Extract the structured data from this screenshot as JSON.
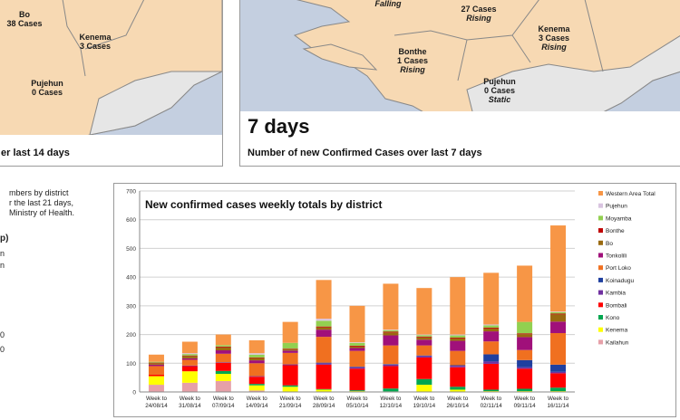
{
  "map14": {
    "districts": [
      {
        "name": "Bo",
        "cases": "38 Cases"
      },
      {
        "name": "Kenema",
        "cases": "3 Cases"
      },
      {
        "name": "Pujehun",
        "cases": "0 Cases"
      }
    ],
    "caption": "er last 14 days"
  },
  "map7": {
    "top_trend": "Falling",
    "top_cases": "27 Cases",
    "top_cases_trend": "Rising",
    "districts": [
      {
        "name": "Kenema",
        "cases": "3 Cases",
        "trend": "Rising"
      },
      {
        "name": "Bonthe",
        "cases": "1 Cases",
        "trend": "Rising"
      },
      {
        "name": "Pujehun",
        "cases": "0 Cases",
        "trend": "Static"
      }
    ],
    "big_label": "7 days",
    "caption": "Number of new Confirmed Cases over last 7 days"
  },
  "left_note": {
    "lines": [
      "mbers by district",
      "r the last 21 days,",
      "Ministry of Health."
    ],
    "fragments": [
      "p)",
      "n",
      "n",
      "0",
      "0"
    ]
  },
  "colors": {
    "land": "#f7d9b3",
    "other_land": "#e6e6e6",
    "sea": "#c4cfe0",
    "border": "#888888"
  },
  "chart_data": {
    "type": "bar",
    "stacked": true,
    "title": "New confirmed cases weekly totals by district",
    "ylim": [
      0,
      700
    ],
    "yticks": [
      0,
      100,
      200,
      300,
      400,
      500,
      600,
      700
    ],
    "grid": true,
    "legend_position": "right",
    "categories": [
      {
        "line1": "Week to",
        "line2": "24/08/14"
      },
      {
        "line1": "Week to",
        "line2": "31/08/14"
      },
      {
        "line1": "Week to",
        "line2": "07/09/14"
      },
      {
        "line1": "Week to",
        "line2": "14/09/14"
      },
      {
        "line1": "Week to",
        "line2": "21/09/14"
      },
      {
        "line1": "Week to",
        "line2": "28/09/14"
      },
      {
        "line1": "Week to",
        "line2": "05/10/14"
      },
      {
        "line1": "Week to",
        "line2": "12/10/14"
      },
      {
        "line1": "Week to",
        "line2": "19/10/14"
      },
      {
        "line1": "Week to",
        "line2": "26/10/14"
      },
      {
        "line1": "Week to",
        "line2": "02/11/14"
      },
      {
        "line1": "Week to",
        "line2": "09/11/14"
      },
      {
        "line1": "Week to",
        "line2": "16/11/14"
      }
    ],
    "series": [
      {
        "name": "Kailahun",
        "color": "#e6a0a8",
        "values": [
          25,
          32,
          38,
          5,
          0,
          0,
          0,
          0,
          0,
          0,
          0,
          0,
          0
        ]
      },
      {
        "name": "Kenema",
        "color": "#ffff00",
        "values": [
          30,
          40,
          25,
          18,
          18,
          8,
          3,
          2,
          25,
          8,
          3,
          3,
          3
        ]
      },
      {
        "name": "Kono",
        "color": "#00a650",
        "values": [
          0,
          0,
          10,
          5,
          5,
          2,
          3,
          10,
          20,
          10,
          5,
          8,
          12
        ]
      },
      {
        "name": "Bombali",
        "color": "#ff0000",
        "values": [
          5,
          18,
          28,
          25,
          70,
          85,
          75,
          78,
          75,
          68,
          90,
          70,
          50
        ]
      },
      {
        "name": "Kambia",
        "color": "#7030a0",
        "values": [
          0,
          2,
          2,
          2,
          3,
          5,
          5,
          5,
          5,
          5,
          8,
          5,
          5
        ]
      },
      {
        "name": "Koinadugu",
        "color": "#1f3f9f",
        "values": [
          0,
          0,
          0,
          0,
          0,
          2,
          2,
          2,
          2,
          2,
          25,
          25,
          25
        ]
      },
      {
        "name": "Port Loko",
        "color": "#f07020",
        "values": [
          30,
          20,
          30,
          45,
          40,
          90,
          55,
          65,
          35,
          50,
          45,
          35,
          110
        ]
      },
      {
        "name": "Tonkolili",
        "color": "#a0107a",
        "values": [
          5,
          5,
          12,
          10,
          8,
          25,
          10,
          35,
          20,
          35,
          35,
          45,
          40
        ]
      },
      {
        "name": "Bo",
        "color": "#9a6a10",
        "values": [
          5,
          8,
          10,
          8,
          5,
          8,
          5,
          10,
          8,
          8,
          10,
          10,
          25
        ]
      },
      {
        "name": "Bonthe",
        "color": "#c00000",
        "values": [
          2,
          2,
          3,
          2,
          2,
          3,
          3,
          3,
          3,
          3,
          3,
          3,
          3
        ]
      },
      {
        "name": "Moyamba",
        "color": "#92d050",
        "values": [
          3,
          5,
          5,
          10,
          20,
          20,
          10,
          5,
          5,
          8,
          8,
          40,
          5
        ]
      },
      {
        "name": "Pujehun",
        "color": "#d9c4e0",
        "values": [
          0,
          3,
          0,
          5,
          0,
          7,
          2,
          2,
          2,
          3,
          3,
          0,
          2
        ]
      },
      {
        "name": "Western Area Total",
        "color": "#f79646",
        "values": [
          25,
          40,
          37,
          45,
          73,
          135,
          127,
          160,
          162,
          200,
          180,
          196,
          300
        ]
      }
    ]
  }
}
